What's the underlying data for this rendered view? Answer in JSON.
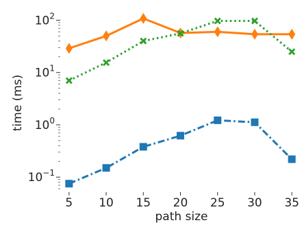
{
  "chart_data": {
    "type": "line",
    "title": "",
    "xlabel": "path size",
    "ylabel": "time (ms)",
    "x": [
      5,
      10,
      15,
      20,
      25,
      30,
      35
    ],
    "xlim": [
      4,
      36
    ],
    "yscale": "log",
    "ylim": [
      0.055,
      180
    ],
    "yticks": [
      {
        "value": 0.1,
        "base": "10",
        "exp": "−1"
      },
      {
        "value": 1,
        "base": "10",
        "exp": "0"
      },
      {
        "value": 10,
        "base": "10",
        "exp": "1"
      },
      {
        "value": 100,
        "base": "10",
        "exp": "2"
      }
    ],
    "grid": false,
    "legend": "none",
    "series": [
      {
        "values": [
          0.075,
          0.15,
          0.38,
          0.62,
          1.22,
          1.12,
          0.22
        ],
        "color": "#1f77b4",
        "linestyle": "dashdot",
        "marker": "square"
      },
      {
        "values": [
          29,
          50,
          108,
          57,
          60,
          54,
          54
        ],
        "color": "#ff7f0e",
        "linestyle": "solid",
        "marker": "thin-diamond"
      },
      {
        "values": [
          7,
          15.5,
          40,
          56,
          97,
          97,
          25
        ],
        "color": "#2ca02c",
        "linestyle": "dotted",
        "marker": "x-filled"
      }
    ]
  }
}
